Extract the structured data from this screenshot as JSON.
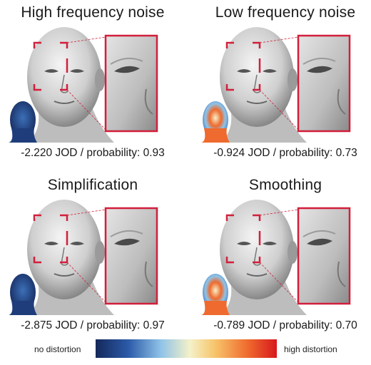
{
  "panels": [
    {
      "title": "High frequency noise",
      "caption": "-2.220 JOD / probability: 0.93",
      "heatmap": "blue"
    },
    {
      "title": "Low frequency noise",
      "caption": "-0.924 JOD / probability: 0.73",
      "heatmap": "mixed"
    },
    {
      "title": "Simplification",
      "caption": "-2.875 JOD / probability: 0.97",
      "heatmap": "blue"
    },
    {
      "title": "Smoothing",
      "caption": "-0.789 JOD / probability: 0.70",
      "heatmap": "mixed"
    }
  ],
  "legend": {
    "low_label": "no distortion",
    "high_label": "high distortion"
  },
  "colors": {
    "accent_red": "#d11f3a",
    "low": "#14285a",
    "high": "#d7191c"
  }
}
